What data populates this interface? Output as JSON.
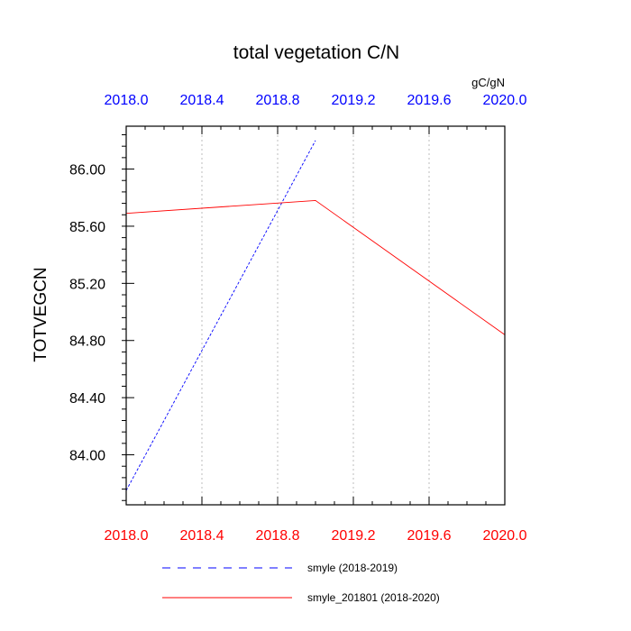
{
  "chart_data": {
    "type": "line",
    "title": "total vegetation C/N",
    "units": "gC/gN",
    "ylabel": "TOTVEGCN",
    "xlabel": "",
    "xlim": [
      2018.0,
      2020.0
    ],
    "ylim": [
      83.65,
      86.3
    ],
    "x_ticks": [
      "2018.0",
      "2018.4",
      "2018.8",
      "2019.2",
      "2019.6",
      "2020.0"
    ],
    "y_ticks": [
      "84.00",
      "84.40",
      "84.80",
      "85.20",
      "85.60",
      "86.00"
    ],
    "grid": "vertical dotted",
    "colors": {
      "top_ticks": "#0000ff",
      "bottom_ticks": "#ff0000"
    },
    "series": [
      {
        "name": "smyle (2018-2019)",
        "color": "#0000ff",
        "style": "dashed",
        "x": [
          2018.0,
          2019.0
        ],
        "y": [
          83.75,
          86.2
        ]
      },
      {
        "name": "smyle_201801 (2018-2020)",
        "color": "#ff0000",
        "style": "solid",
        "x": [
          2018.0,
          2019.0,
          2020.0
        ],
        "y": [
          85.69,
          85.78,
          84.84
        ]
      }
    ]
  }
}
